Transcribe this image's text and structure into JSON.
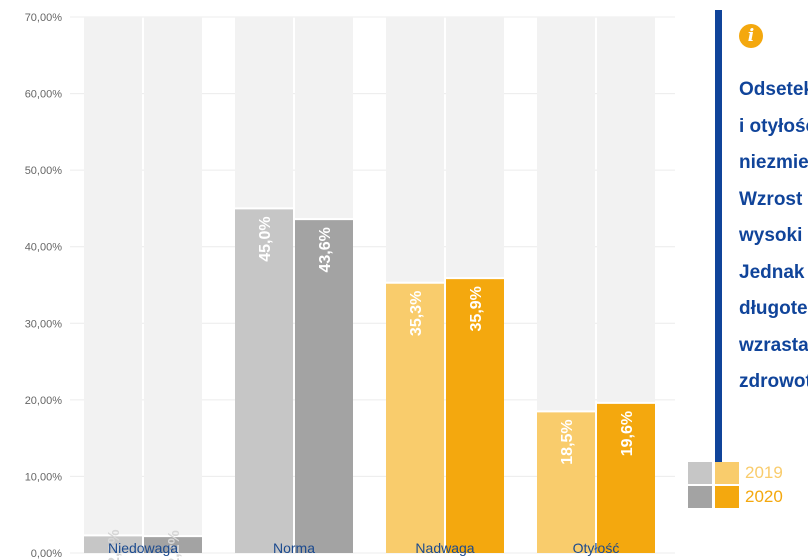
{
  "chart_data": {
    "type": "bar",
    "categories": [
      "Niedowaga",
      "Norma",
      "Nadwaga",
      "Otyłość"
    ],
    "series": [
      {
        "name": "2019",
        "values": [
          2.3,
          45.0,
          35.3,
          18.5
        ]
      },
      {
        "name": "2020",
        "values": [
          2.2,
          43.6,
          35.9,
          19.6
        ]
      }
    ],
    "value_labels": [
      [
        "2,3%",
        "2,2%"
      ],
      [
        "45,0%",
        "43,6%"
      ],
      [
        "35,3%",
        "35,9%"
      ],
      [
        "18,5%",
        "19,6%"
      ]
    ],
    "y_ticks": [
      "0,00%",
      "10,00%",
      "20,00%",
      "30,00%",
      "40,00%",
      "50,00%",
      "60,00%",
      "70,00%"
    ],
    "ylim": [
      0,
      70
    ],
    "grid": true,
    "legend_position": "bottom-right",
    "colors": {
      "background_column": "#f2f2f2",
      "grey_2019": "#c6c6c6",
      "grey_2020": "#a3a3a3",
      "orange_2019": "#f9cc6c",
      "orange_2020": "#f4a80e",
      "label_light": "#d6d6d6",
      "category_text": "#1b4a8f",
      "tick_text": "#666666"
    }
  },
  "info_panel": {
    "icon": "info-icon",
    "lines": [
      "Odsetek osób z nadwagą",
      "i otyłością w Polsce",
      "niezmiennie rośnie.",
      "Wzrost nie jest",
      "wysoki rok do roku.",
      "Jednak w perspektywie",
      "długoterminowej",
      "wzrasta ryzyko",
      "zdrowotne."
    ],
    "accent_color": "#10449a",
    "icon_color": "#f4a80e"
  },
  "legend": {
    "items": [
      {
        "label": "2019",
        "swatches": [
          "#c6c6c6",
          "#f9cc6c"
        ],
        "text_color": "#f9cc6c"
      },
      {
        "label": "2020",
        "swatches": [
          "#a3a3a3",
          "#f4a80e"
        ],
        "text_color": "#f4a80e"
      }
    ]
  }
}
